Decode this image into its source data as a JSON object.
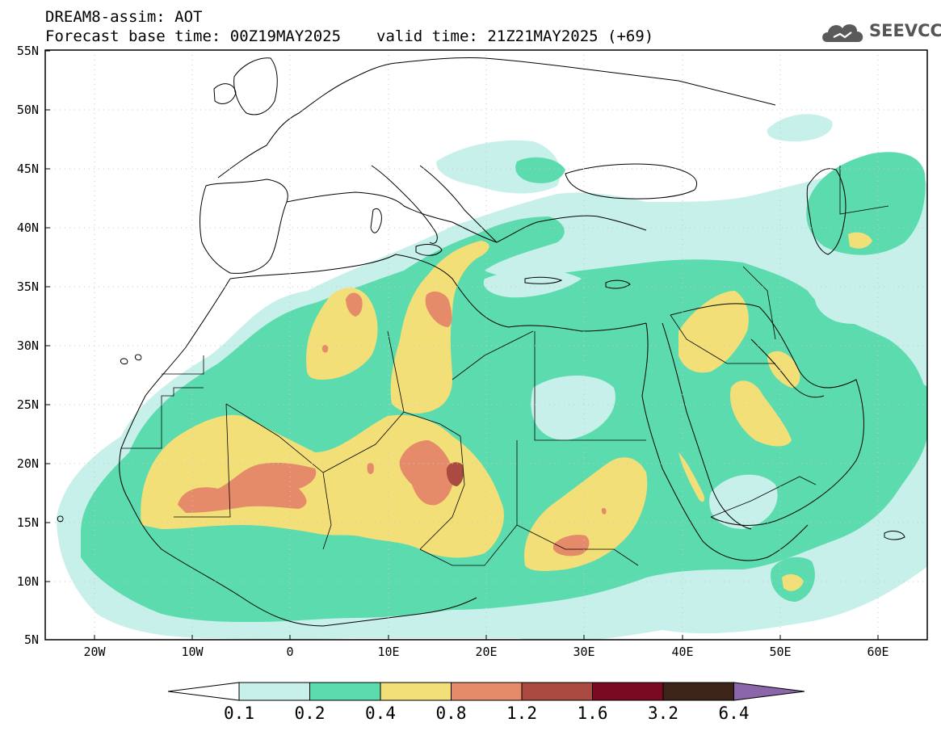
{
  "header": {
    "line1": "DREAM8-assim: AOT",
    "base_time": "Forecast base time: 00Z19MAY2025",
    "valid_time": "valid time: 21Z21MAY2025 (+69)"
  },
  "logo": {
    "text": "SEEVCCC",
    "icon": "cloud-icon"
  },
  "map": {
    "lat_labels": [
      "55N",
      "50N",
      "45N",
      "40N",
      "35N",
      "30N",
      "25N",
      "20N",
      "15N",
      "10N",
      "5N"
    ],
    "lon_labels": [
      "20W",
      "10W",
      "0",
      "10E",
      "20E",
      "30E",
      "40E",
      "50E",
      "60E"
    ]
  },
  "colorbar": {
    "labels": [
      "0.1",
      "0.2",
      "0.4",
      "0.8",
      "1.2",
      "1.6",
      "3.2",
      "6.4"
    ],
    "colors": [
      "#ffffff",
      "#c8f0ea",
      "#5cdbaf",
      "#f3df78",
      "#e68b6a",
      "#aa4a40",
      "#7a0a22",
      "#3c2418",
      "#8b66a9"
    ]
  }
}
